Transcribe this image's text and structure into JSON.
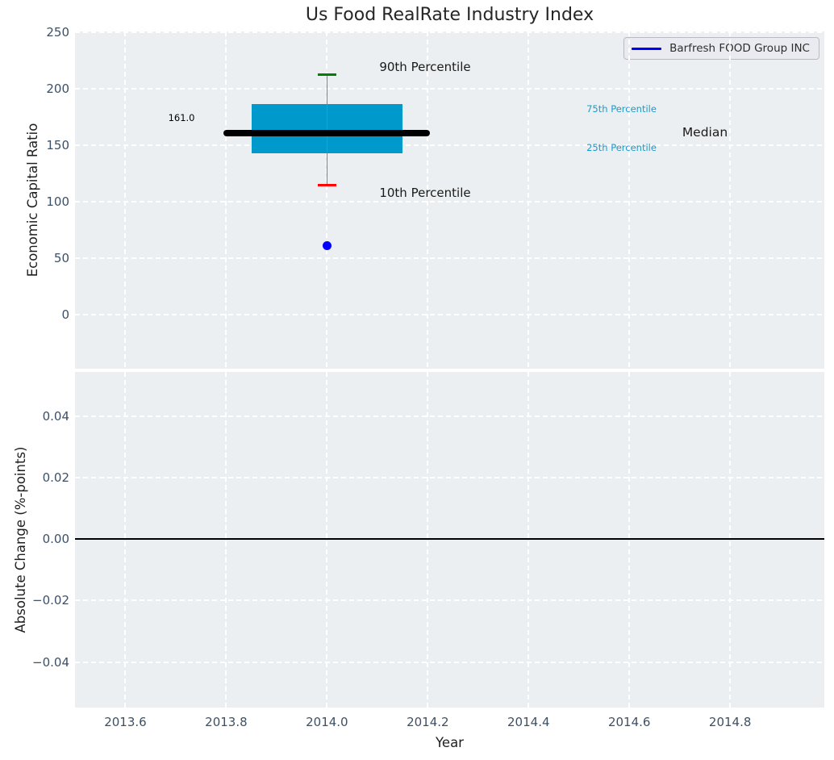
{
  "figure": {
    "title": "Us Food RealRate Industry Index",
    "background": "#ffffff",
    "axes_background": "#eceff1",
    "grid_color": "#ffffff",
    "tick_color": "#3e5064"
  },
  "chart_data": [
    {
      "type": "box",
      "title": "Us Food RealRate Industry Index",
      "ylabel": "Economic Capital Ratio",
      "xlim": [
        2013.5,
        2014.987
      ],
      "ylim": [
        -47.5,
        250.5
      ],
      "grid": true,
      "yticks": [
        {
          "v": 250,
          "label": "250"
        },
        {
          "v": 200,
          "label": "200"
        },
        {
          "v": 150,
          "label": "150"
        },
        {
          "v": 100,
          "label": "100"
        },
        {
          "v": 50,
          "label": "50"
        },
        {
          "v": 0,
          "label": "0"
        }
      ],
      "xticks": [
        {
          "v": 2013.6,
          "label": "2013.6"
        },
        {
          "v": 2013.8,
          "label": "2013.8"
        },
        {
          "v": 2014.0,
          "label": "2014.0"
        },
        {
          "v": 2014.2,
          "label": "2014.2"
        },
        {
          "v": 2014.4,
          "label": "2014.4"
        },
        {
          "v": 2014.6,
          "label": "2014.6"
        },
        {
          "v": 2014.8,
          "label": "2014.8"
        }
      ],
      "legend": {
        "label": "Barfresh FOOD Group INC",
        "color": "#0000ff",
        "position": "upper right"
      },
      "box": {
        "x": 2014.0,
        "width": 0.3,
        "median": 161.0,
        "median_label": "161.0",
        "q1": 142.5,
        "q3": 186.0,
        "p10": 114.5,
        "p90": 212.5,
        "median_line_span": 0.41,
        "cap_span": 0.036,
        "fill_color": "#0099cc",
        "median_color": "#000000",
        "p90_color": "#008000",
        "p10_color": "#ff0000",
        "whisker_color": "#7f7f7f"
      },
      "point": {
        "x": 2014.0,
        "y": 61.5,
        "color": "#0000ff",
        "series": "Barfresh FOOD Group INC"
      },
      "annotations": [
        {
          "text": "90th Percentile",
          "x": 2014.104,
          "y": 219.0,
          "color": "#1a1a1a",
          "size": 15
        },
        {
          "text": "10th Percentile",
          "x": 2014.104,
          "y": 108.0,
          "color": "#1a1a1a",
          "size": 15
        },
        {
          "text": "75th Percentile",
          "x": 2014.515,
          "y": 182.0,
          "color": "#1d9ac9",
          "size": 11.5
        },
        {
          "text": "25th Percentile",
          "x": 2014.515,
          "y": 147.5,
          "color": "#1d9ac9",
          "size": 11.5
        },
        {
          "text": "Median",
          "x": 2014.705,
          "y": 161.5,
          "color": "#1a1a1a",
          "size": 15.5
        },
        {
          "text": "161.0",
          "x": 2013.685,
          "y": 174.0,
          "color": "#000000",
          "size": 11.5
        }
      ]
    },
    {
      "type": "line",
      "ylabel": "Absolute Change (%-points)",
      "xlabel": "Year",
      "xlim": [
        2013.5,
        2014.987
      ],
      "ylim": [
        -0.0548,
        0.0543
      ],
      "grid": true,
      "yticks": [
        {
          "v": 0.04,
          "label": "0.04"
        },
        {
          "v": 0.02,
          "label": "0.02"
        },
        {
          "v": 0.0,
          "label": "0.00"
        },
        {
          "v": -0.02,
          "label": "−0.02"
        },
        {
          "v": -0.04,
          "label": "−0.04"
        }
      ],
      "xticks": [
        {
          "v": 2013.6,
          "label": "2013.6"
        },
        {
          "v": 2013.8,
          "label": "2013.8"
        },
        {
          "v": 2014.0,
          "label": "2014.0"
        },
        {
          "v": 2014.2,
          "label": "2014.2"
        },
        {
          "v": 2014.4,
          "label": "2014.4"
        },
        {
          "v": 2014.6,
          "label": "2014.6"
        },
        {
          "v": 2014.8,
          "label": "2014.8"
        }
      ],
      "zero_line": {
        "y": 0.0,
        "color": "#000000"
      }
    }
  ]
}
